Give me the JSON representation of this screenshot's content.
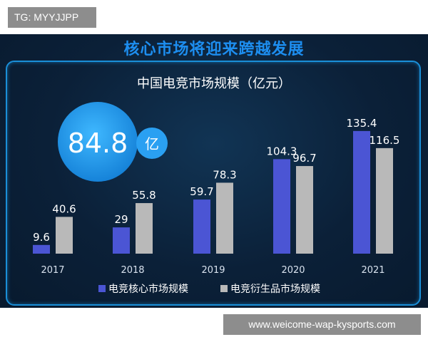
{
  "top_tag": "TG: MYYJJPP",
  "header_title": "核心市场将迎来跨越发展",
  "bottom_watermark": "www.weicome-wap-kysports.com",
  "highlight": {
    "value": "84.8",
    "unit": "亿"
  },
  "chart_data": {
    "type": "bar",
    "title": "中国电竞市场规模（亿元）",
    "categories": [
      "2017",
      "2018",
      "2019",
      "2020",
      "2021"
    ],
    "series": [
      {
        "name": "电竞核心市场规模",
        "values": [
          9.6,
          29,
          59.7,
          104.3,
          135.4
        ],
        "color": "#4b55d4"
      },
      {
        "name": "电竞衍生品市场规模",
        "values": [
          40.6,
          55.8,
          78.3,
          96.7,
          116.5
        ],
        "color": "#b9b9b9"
      }
    ],
    "ylim": [
      0,
      140
    ],
    "xlabel": "",
    "ylabel": "",
    "grid": false,
    "legend": "bottom-center"
  }
}
